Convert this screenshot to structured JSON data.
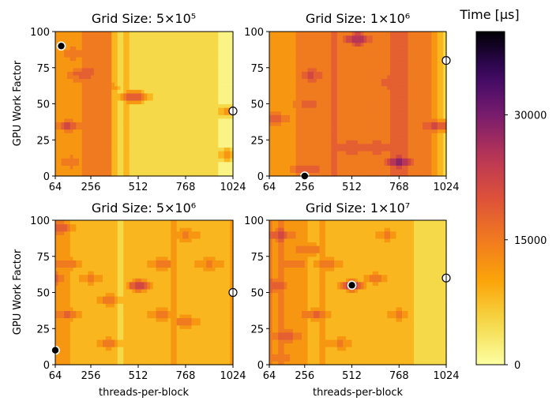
{
  "chart_data": {
    "type": "heatmap",
    "subtype": "filled-contour",
    "colormap": "inferno_r",
    "colorbar": {
      "label": "Time [μs]",
      "range": [
        0,
        40000
      ],
      "ticks": [
        0,
        15000,
        30000
      ],
      "tick_labels": [
        "0",
        "15000",
        "30000"
      ]
    },
    "x_ticks": [
      64,
      256,
      512,
      768,
      1024
    ],
    "y_ticks": [
      0,
      25,
      50,
      75,
      100
    ],
    "xlim": [
      64,
      1024
    ],
    "ylim": [
      0,
      100
    ],
    "xlabel": "threads-per-block",
    "ylabel": "GPU Work Factor",
    "panels": [
      {
        "title": "Grid Size: 5×10⁵",
        "base_time": 9000,
        "columns": [
          {
            "x": 64,
            "t": 11000
          },
          {
            "x": 96,
            "t": 10500
          },
          {
            "x": 128,
            "t": 11800
          },
          {
            "x": 160,
            "t": 12800
          },
          {
            "x": 192,
            "t": 12200
          },
          {
            "x": 224,
            "t": 14500
          },
          {
            "x": 256,
            "t": 15500
          },
          {
            "x": 288,
            "t": 13800
          },
          {
            "x": 320,
            "t": 15300
          },
          {
            "x": 352,
            "t": 14800
          },
          {
            "x": 384,
            "t": 9000
          },
          {
            "x": 416,
            "t": 6500
          },
          {
            "x": 448,
            "t": 8200
          },
          {
            "x": 480,
            "t": 5200
          },
          {
            "x": 512,
            "t": 6000
          },
          {
            "x": 544,
            "t": 5000
          },
          {
            "x": 576,
            "t": 4600
          },
          {
            "x": 608,
            "t": 4200
          },
          {
            "x": 640,
            "t": 4000
          },
          {
            "x": 672,
            "t": 3900
          },
          {
            "x": 704,
            "t": 3800
          },
          {
            "x": 736,
            "t": 3700
          },
          {
            "x": 768,
            "t": 3600
          },
          {
            "x": 800,
            "t": 3600
          },
          {
            "x": 832,
            "t": 3500
          },
          {
            "x": 864,
            "t": 3500
          },
          {
            "x": 896,
            "t": 3400
          },
          {
            "x": 928,
            "t": 3400
          },
          {
            "x": 960,
            "t": 3300
          },
          {
            "x": 992,
            "t": 3300
          },
          {
            "x": 1024,
            "t": 3200
          }
        ],
        "hotspots": [
          {
            "x": 128,
            "y": 35,
            "t": 24000
          },
          {
            "x": 128,
            "y": 10,
            "t": 16500
          },
          {
            "x": 160,
            "y": 85,
            "t": 16000
          },
          {
            "x": 192,
            "y": 70,
            "t": 18000
          },
          {
            "x": 224,
            "y": 72,
            "t": 19000
          },
          {
            "x": 320,
            "y": 62,
            "t": 17000
          },
          {
            "x": 480,
            "y": 55,
            "t": 21000
          },
          {
            "x": 512,
            "y": 55,
            "t": 20500
          },
          {
            "x": 992,
            "y": 15,
            "t": 14500
          },
          {
            "x": 992,
            "y": 45,
            "t": 13000
          }
        ],
        "markers": [
          {
            "x": 96,
            "y": 90,
            "type": "minimum"
          },
          {
            "x": 1024,
            "y": 45,
            "type": "maximum"
          }
        ]
      },
      {
        "title": "Grid Size: 1×10⁶",
        "base_time": 13000,
        "columns": [
          {
            "x": 64,
            "t": 12000
          },
          {
            "x": 96,
            "t": 11500
          },
          {
            "x": 128,
            "t": 12500
          },
          {
            "x": 160,
            "t": 13200
          },
          {
            "x": 192,
            "t": 12200
          },
          {
            "x": 224,
            "t": 13500
          },
          {
            "x": 256,
            "t": 14200
          },
          {
            "x": 288,
            "t": 15600
          },
          {
            "x": 320,
            "t": 16200
          },
          {
            "x": 352,
            "t": 15800
          },
          {
            "x": 384,
            "t": 16500
          },
          {
            "x": 416,
            "t": 16800
          },
          {
            "x": 448,
            "t": 16400
          },
          {
            "x": 480,
            "t": 16100
          },
          {
            "x": 512,
            "t": 15800
          },
          {
            "x": 544,
            "t": 16200
          },
          {
            "x": 576,
            "t": 15900
          },
          {
            "x": 608,
            "t": 15600
          },
          {
            "x": 640,
            "t": 16100
          },
          {
            "x": 672,
            "t": 15800
          },
          {
            "x": 704,
            "t": 16500
          },
          {
            "x": 736,
            "t": 16800
          },
          {
            "x": 768,
            "t": 17000
          },
          {
            "x": 800,
            "t": 16700
          },
          {
            "x": 832,
            "t": 16200
          },
          {
            "x": 864,
            "t": 15800
          },
          {
            "x": 896,
            "t": 15200
          },
          {
            "x": 928,
            "t": 13800
          },
          {
            "x": 960,
            "t": 11500
          },
          {
            "x": 992,
            "t": 9000
          },
          {
            "x": 1024,
            "t": 6000
          }
        ],
        "hotspots": [
          {
            "x": 768,
            "y": 10,
            "t": 33000
          },
          {
            "x": 544,
            "y": 95,
            "t": 30000
          },
          {
            "x": 960,
            "y": 35,
            "t": 24000
          },
          {
            "x": 1024,
            "y": 35,
            "t": 23000
          },
          {
            "x": 256,
            "y": 5,
            "t": 22000
          },
          {
            "x": 288,
            "y": 70,
            "t": 22000
          },
          {
            "x": 256,
            "y": 50,
            "t": 19000
          },
          {
            "x": 512,
            "y": 20,
            "t": 20000
          },
          {
            "x": 96,
            "y": 40,
            "t": 21000
          },
          {
            "x": 640,
            "y": 20,
            "t": 21500
          },
          {
            "x": 736,
            "y": 65,
            "t": 19500
          }
        ],
        "markers": [
          {
            "x": 256,
            "y": 0,
            "type": "minimum"
          },
          {
            "x": 1024,
            "y": 80,
            "type": "maximum"
          }
        ]
      },
      {
        "title": "Grid Size: 5×10⁶",
        "base_time": 10500,
        "columns": [
          {
            "x": 64,
            "t": 12000
          },
          {
            "x": 96,
            "t": 10800
          },
          {
            "x": 128,
            "t": 10000
          },
          {
            "x": 160,
            "t": 9300
          },
          {
            "x": 192,
            "t": 8800
          },
          {
            "x": 224,
            "t": 8500
          },
          {
            "x": 256,
            "t": 8200
          },
          {
            "x": 288,
            "t": 7800
          },
          {
            "x": 320,
            "t": 8400
          },
          {
            "x": 352,
            "t": 9300
          },
          {
            "x": 384,
            "t": 8500
          },
          {
            "x": 416,
            "t": 6200
          },
          {
            "x": 448,
            "t": 7000
          },
          {
            "x": 480,
            "t": 8500
          },
          {
            "x": 512,
            "t": 9800
          },
          {
            "x": 544,
            "t": 9800
          },
          {
            "x": 576,
            "t": 9500
          },
          {
            "x": 608,
            "t": 9000
          },
          {
            "x": 640,
            "t": 9300
          },
          {
            "x": 672,
            "t": 9800
          },
          {
            "x": 704,
            "t": 10000
          },
          {
            "x": 736,
            "t": 9500
          },
          {
            "x": 768,
            "t": 9800
          },
          {
            "x": 800,
            "t": 9300
          },
          {
            "x": 832,
            "t": 9600
          },
          {
            "x": 864,
            "t": 9900
          },
          {
            "x": 896,
            "t": 9400
          },
          {
            "x": 928,
            "t": 9200
          },
          {
            "x": 960,
            "t": 9700
          },
          {
            "x": 992,
            "t": 9900
          },
          {
            "x": 1024,
            "t": 10000
          }
        ],
        "hotspots": [
          {
            "x": 512,
            "y": 55,
            "t": 28000
          },
          {
            "x": 96,
            "y": 95,
            "t": 22000
          },
          {
            "x": 128,
            "y": 70,
            "t": 19000
          },
          {
            "x": 128,
            "y": 35,
            "t": 19500
          },
          {
            "x": 64,
            "y": 60,
            "t": 18500
          },
          {
            "x": 352,
            "y": 45,
            "t": 18500
          },
          {
            "x": 352,
            "y": 15,
            "t": 17500
          },
          {
            "x": 640,
            "y": 70,
            "t": 19000
          },
          {
            "x": 768,
            "y": 30,
            "t": 18500
          },
          {
            "x": 640,
            "y": 35,
            "t": 17000
          },
          {
            "x": 256,
            "y": 60,
            "t": 16500
          },
          {
            "x": 896,
            "y": 70,
            "t": 15500
          },
          {
            "x": 768,
            "y": 90,
            "t": 16000
          }
        ],
        "markers": [
          {
            "x": 64,
            "y": 10,
            "type": "minimum"
          },
          {
            "x": 1024,
            "y": 50,
            "type": "maximum"
          }
        ]
      },
      {
        "title": "Grid Size: 1×10⁷",
        "base_time": 7000,
        "columns": [
          {
            "x": 64,
            "t": 15500
          },
          {
            "x": 96,
            "t": 12000
          },
          {
            "x": 128,
            "t": 15000
          },
          {
            "x": 160,
            "t": 11000
          },
          {
            "x": 192,
            "t": 11800
          },
          {
            "x": 224,
            "t": 12500
          },
          {
            "x": 256,
            "t": 12200
          },
          {
            "x": 288,
            "t": 9800
          },
          {
            "x": 320,
            "t": 9200
          },
          {
            "x": 352,
            "t": 10200
          },
          {
            "x": 384,
            "t": 9500
          },
          {
            "x": 416,
            "t": 8800
          },
          {
            "x": 448,
            "t": 9200
          },
          {
            "x": 480,
            "t": 9000
          },
          {
            "x": 512,
            "t": 8500
          },
          {
            "x": 544,
            "t": 8000
          },
          {
            "x": 576,
            "t": 8300
          },
          {
            "x": 608,
            "t": 8600
          },
          {
            "x": 640,
            "t": 8000
          },
          {
            "x": 672,
            "t": 8200
          },
          {
            "x": 704,
            "t": 8400
          },
          {
            "x": 736,
            "t": 8100
          },
          {
            "x": 768,
            "t": 7800
          },
          {
            "x": 800,
            "t": 7400
          },
          {
            "x": 832,
            "t": 7000
          },
          {
            "x": 864,
            "t": 6500
          },
          {
            "x": 896,
            "t": 5800
          },
          {
            "x": 928,
            "t": 5200
          },
          {
            "x": 960,
            "t": 4800
          },
          {
            "x": 992,
            "t": 4400
          },
          {
            "x": 1024,
            "t": 4200
          }
        ],
        "hotspots": [
          {
            "x": 512,
            "y": 55,
            "t": 30000
          },
          {
            "x": 128,
            "y": 90,
            "t": 24000
          },
          {
            "x": 96,
            "y": 55,
            "t": 23000
          },
          {
            "x": 160,
            "y": 20,
            "t": 22000
          },
          {
            "x": 320,
            "y": 35,
            "t": 21000
          },
          {
            "x": 288,
            "y": 80,
            "t": 19000
          },
          {
            "x": 384,
            "y": 70,
            "t": 18000
          },
          {
            "x": 640,
            "y": 60,
            "t": 17500
          },
          {
            "x": 768,
            "y": 35,
            "t": 17000
          },
          {
            "x": 192,
            "y": 70,
            "t": 16500
          },
          {
            "x": 448,
            "y": 15,
            "t": 16000
          },
          {
            "x": 704,
            "y": 90,
            "t": 15500
          },
          {
            "x": 128,
            "y": 5,
            "t": 17000
          }
        ],
        "markers": [
          {
            "x": 512,
            "y": 55,
            "type": "minimum"
          },
          {
            "x": 1024,
            "y": 60,
            "type": "maximum"
          }
        ]
      }
    ]
  }
}
